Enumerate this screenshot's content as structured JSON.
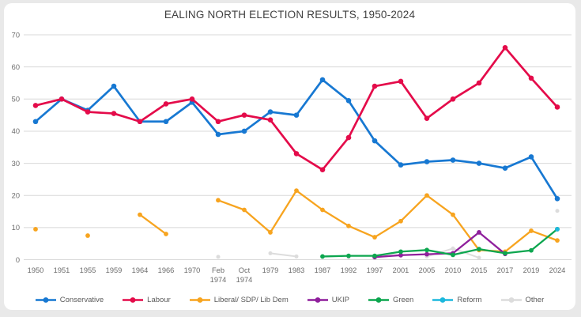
{
  "page": {
    "background": "#e9e9e9",
    "card_background": "#ffffff"
  },
  "chart_data": {
    "type": "line",
    "title": "EALING NORTH ELECTION RESULTS, 1950-2024",
    "xlabel": "",
    "ylabel": "",
    "ylim": [
      0,
      70
    ],
    "yticks": [
      0,
      10,
      20,
      30,
      40,
      50,
      60,
      70
    ],
    "grid": true,
    "legend_position": "bottom",
    "categories": [
      "1950",
      "1951",
      "1955",
      "1959",
      "1964",
      "1966",
      "1970",
      "Feb 1974",
      "Oct 1974",
      "1979",
      "1983",
      "1987",
      "1992",
      "1997",
      "2001",
      "2005",
      "2010",
      "2015",
      "2017",
      "2019",
      "2024"
    ],
    "series": [
      {
        "name": "Other",
        "color": "#dcdcdc",
        "values": [
          null,
          null,
          null,
          null,
          null,
          null,
          null,
          0.9,
          null,
          2,
          1,
          null,
          0.7,
          null,
          null,
          1,
          3.5,
          0.6,
          null,
          null,
          15.2
        ]
      },
      {
        "name": "Liberal/ SDP/ Lib Dem",
        "color": "#f7a41f",
        "values": [
          9.5,
          null,
          7.5,
          null,
          14,
          8,
          null,
          18.5,
          15.5,
          8.5,
          21.5,
          15.5,
          10.5,
          7,
          12,
          20,
          14,
          3,
          2.5,
          9,
          6
        ]
      },
      {
        "name": "UKIP",
        "color": "#8f1f9c",
        "values": [
          null,
          null,
          null,
          null,
          null,
          null,
          null,
          null,
          null,
          null,
          null,
          null,
          null,
          0.8,
          1.4,
          1.7,
          2,
          8.5,
          1.8,
          null,
          null
        ]
      },
      {
        "name": "Green",
        "color": "#0da64f",
        "values": [
          null,
          null,
          null,
          null,
          null,
          null,
          null,
          null,
          null,
          null,
          null,
          1,
          1.2,
          1.2,
          2.5,
          3,
          1.5,
          3.3,
          2,
          2.9,
          9.5
        ]
      },
      {
        "name": "Reform",
        "color": "#1cb8dd",
        "values": [
          null,
          null,
          null,
          null,
          null,
          null,
          null,
          null,
          null,
          null,
          null,
          null,
          null,
          null,
          null,
          null,
          null,
          null,
          null,
          null,
          9.5
        ]
      },
      {
        "name": "Conservative",
        "color": "#1778d2",
        "values": [
          43,
          50,
          46.5,
          54,
          43,
          43,
          49,
          39,
          40,
          46,
          45,
          56,
          49.5,
          37,
          29.5,
          30.5,
          31,
          30,
          28.5,
          32,
          19
        ]
      },
      {
        "name": "Labour",
        "color": "#e40b4a",
        "values": [
          48,
          50,
          46,
          45.5,
          43,
          48.5,
          50,
          43,
          45,
          43.5,
          33,
          28,
          38,
          54,
          55.5,
          44,
          50,
          55,
          66,
          56.5,
          47.5
        ]
      }
    ],
    "legend_order": [
      "Conservative",
      "Labour",
      "Liberal/ SDP/ Lib Dem",
      "UKIP",
      "Green",
      "Reform",
      "Other"
    ]
  }
}
